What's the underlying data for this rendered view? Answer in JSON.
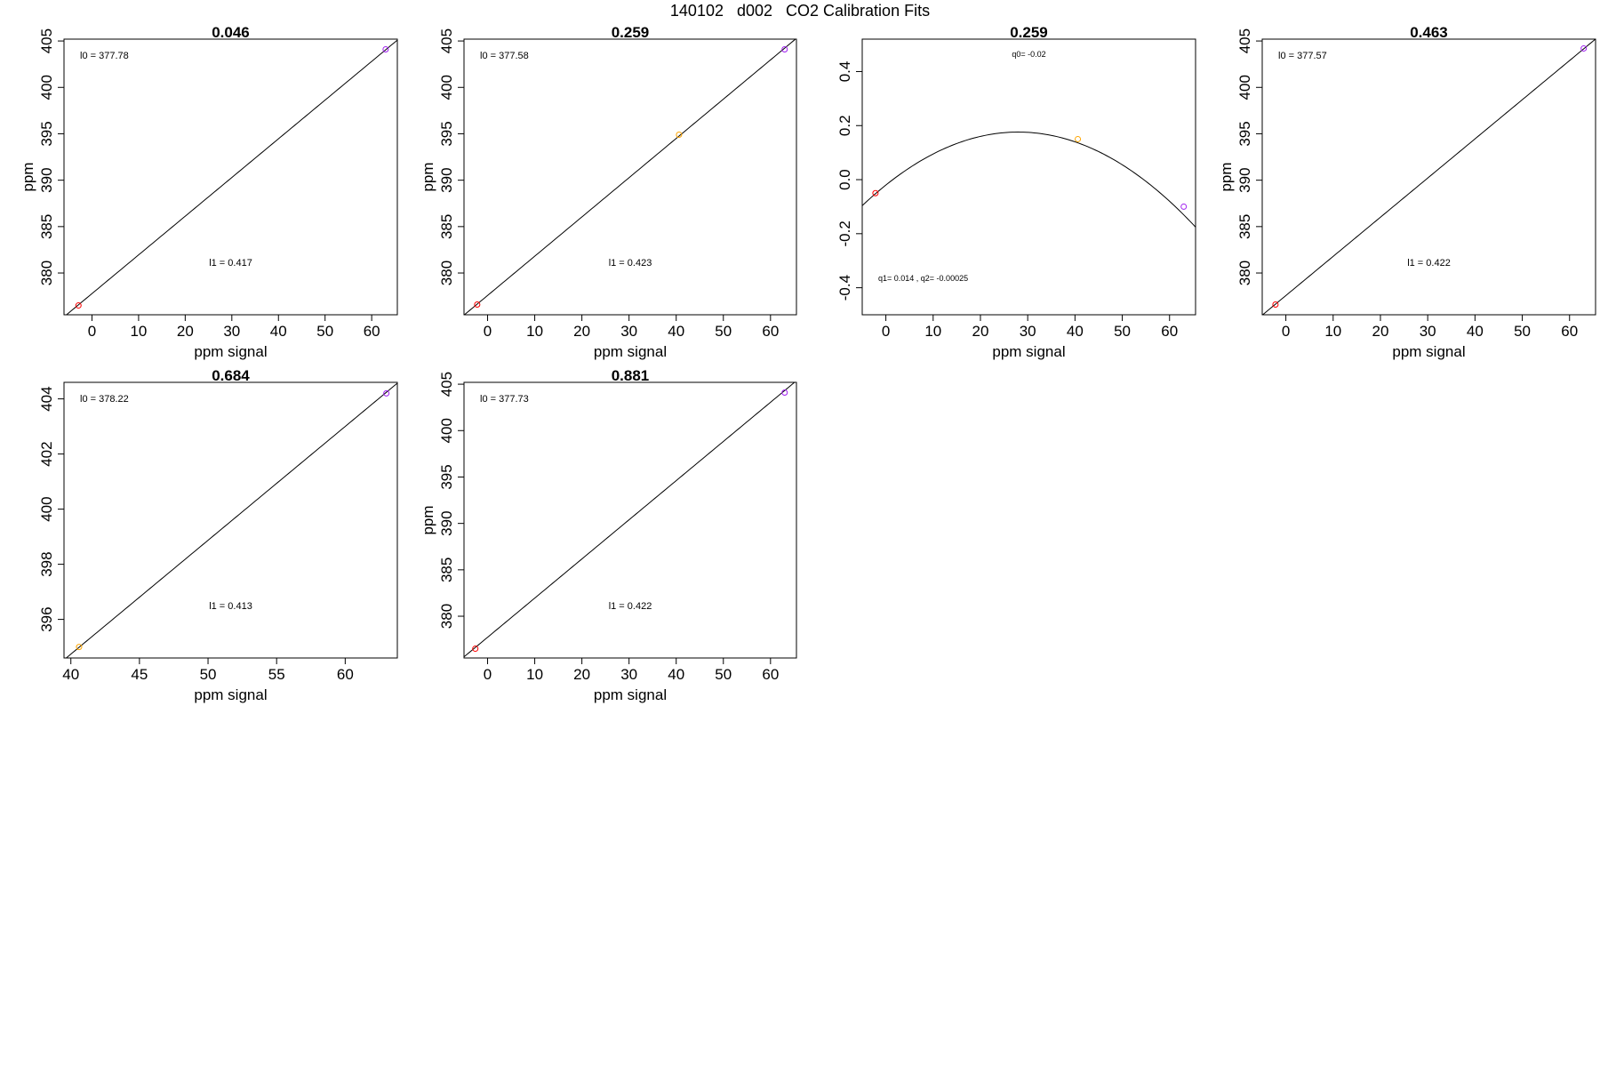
{
  "figure": {
    "title": "140102   d002   CO2 Calibration Fits"
  },
  "colors": {
    "axes": "#000000",
    "fit_line": "#000000",
    "point_low": "#ff0000",
    "point_mid": "#ffa500",
    "point_high": "#a020f0"
  },
  "chart_data": [
    {
      "type": "scatter",
      "title": "0.046",
      "xlabel": "ppm signal",
      "ylabel": "ppm",
      "xlim": [
        -6,
        65.5
      ],
      "ylim": [
        375.5,
        405.2
      ],
      "xticks": [
        0,
        10,
        20,
        30,
        40,
        50,
        60
      ],
      "yticks": [
        380,
        385,
        390,
        395,
        400,
        405
      ],
      "fit": {
        "kind": "linear",
        "intercept": 377.78,
        "slope": 0.417
      },
      "annotations": [
        {
          "text": "l0 =  377.78",
          "pos": "top-left"
        },
        {
          "text": "l1 =  0.417",
          "pos": "bottom-center"
        }
      ],
      "points": [
        {
          "x": -2.9,
          "y": 376.5,
          "color": "point_low"
        },
        {
          "x": 63.0,
          "y": 404.1,
          "color": "point_high"
        }
      ]
    },
    {
      "type": "scatter",
      "title": "0.259",
      "xlabel": "ppm signal",
      "ylabel": "ppm",
      "xlim": [
        -5,
        65.5
      ],
      "ylim": [
        375.5,
        405.2
      ],
      "xticks": [
        0,
        10,
        20,
        30,
        40,
        50,
        60
      ],
      "yticks": [
        380,
        385,
        390,
        395,
        400,
        405
      ],
      "fit": {
        "kind": "linear",
        "intercept": 377.58,
        "slope": 0.423
      },
      "annotations": [
        {
          "text": "l0 =  377.58",
          "pos": "top-left"
        },
        {
          "text": "l1 =  0.423",
          "pos": "bottom-center"
        }
      ],
      "points": [
        {
          "x": -2.2,
          "y": 376.6,
          "color": "point_low"
        },
        {
          "x": 40.6,
          "y": 394.9,
          "color": "point_mid"
        },
        {
          "x": 63.0,
          "y": 404.1,
          "color": "point_high"
        }
      ]
    },
    {
      "type": "scatter",
      "title": "0.259",
      "xlabel": "ppm signal",
      "ylabel": "",
      "xlim": [
        -5,
        65.5
      ],
      "ylim": [
        -0.5,
        0.52
      ],
      "xticks": [
        0,
        10,
        20,
        30,
        40,
        50,
        60
      ],
      "yticks": [
        -0.4,
        -0.2,
        0.0,
        0.2,
        0.4
      ],
      "fit": {
        "kind": "quadratic",
        "q0": -0.02,
        "q1": 0.014,
        "q2": -0.00025
      },
      "annotations": [
        {
          "text": "q0= -0.02",
          "pos": "top-center"
        },
        {
          "text": "q1= 0.014 , q2= -0.00025",
          "pos": "bottom-left"
        }
      ],
      "points": [
        {
          "x": -2.2,
          "y": -0.05,
          "color": "point_low"
        },
        {
          "x": 40.6,
          "y": 0.15,
          "color": "point_mid"
        },
        {
          "x": 63.0,
          "y": -0.1,
          "color": "point_high"
        }
      ]
    },
    {
      "type": "scatter",
      "title": "0.463",
      "xlabel": "ppm signal",
      "ylabel": "ppm",
      "xlim": [
        -5,
        65.5
      ],
      "ylim": [
        375.5,
        405.2
      ],
      "xticks": [
        0,
        10,
        20,
        30,
        40,
        50,
        60
      ],
      "yticks": [
        380,
        385,
        390,
        395,
        400,
        405
      ],
      "fit": {
        "kind": "linear",
        "intercept": 377.57,
        "slope": 0.422
      },
      "annotations": [
        {
          "text": "l0 =  377.57",
          "pos": "top-left"
        },
        {
          "text": "l1 =  0.422",
          "pos": "bottom-center"
        }
      ],
      "points": [
        {
          "x": -2.2,
          "y": 376.6,
          "color": "point_low"
        },
        {
          "x": 63.0,
          "y": 404.2,
          "color": "point_high"
        }
      ]
    },
    {
      "type": "scatter",
      "title": "0.684",
      "xlabel": "ppm signal",
      "ylabel": "",
      "xlim": [
        39.5,
        63.8
      ],
      "ylim": [
        394.6,
        404.6
      ],
      "xticks": [
        40,
        45,
        50,
        55,
        60
      ],
      "yticks": [
        396,
        398,
        400,
        402,
        404
      ],
      "fit": {
        "kind": "linear",
        "intercept": 378.22,
        "slope": 0.413
      },
      "annotations": [
        {
          "text": "l0 =  378.22",
          "pos": "top-left"
        },
        {
          "text": "l1 =  0.413",
          "pos": "bottom-center"
        }
      ],
      "points": [
        {
          "x": 40.6,
          "y": 395.0,
          "color": "point_mid"
        },
        {
          "x": 63.0,
          "y": 404.2,
          "color": "point_high"
        }
      ]
    },
    {
      "type": "scatter",
      "title": "0.881",
      "xlabel": "ppm signal",
      "ylabel": "ppm",
      "xlim": [
        -5,
        65.5
      ],
      "ylim": [
        375.5,
        405.2
      ],
      "xticks": [
        0,
        10,
        20,
        30,
        40,
        50,
        60
      ],
      "yticks": [
        380,
        385,
        390,
        395,
        400,
        405
      ],
      "fit": {
        "kind": "linear",
        "intercept": 377.73,
        "slope": 0.422
      },
      "annotations": [
        {
          "text": "l0 =  377.73",
          "pos": "top-left"
        },
        {
          "text": "l1 =  0.422",
          "pos": "bottom-center"
        }
      ],
      "points": [
        {
          "x": -2.6,
          "y": 376.5,
          "color": "point_low"
        },
        {
          "x": 63.0,
          "y": 404.1,
          "color": "point_high"
        }
      ]
    }
  ]
}
